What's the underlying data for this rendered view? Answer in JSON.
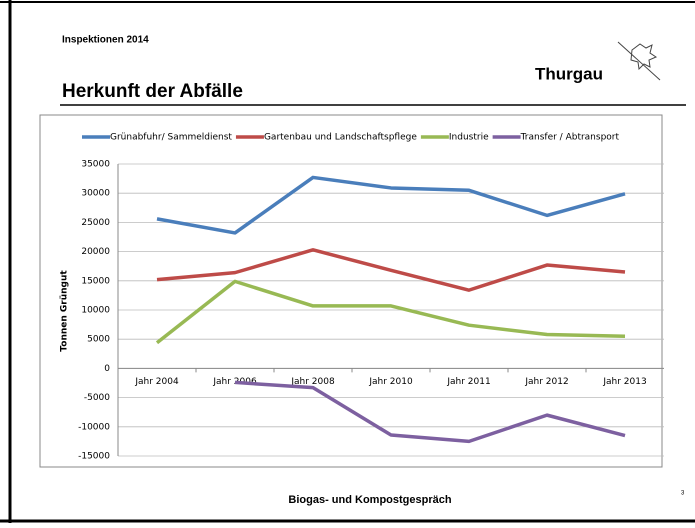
{
  "header": "Inspektionen 2014",
  "logo": "Thurgau",
  "title": "Herkunft der Abfälle",
  "footer": "Biogas- und Kompostgespräch",
  "page_number": "3",
  "chart_data": {
    "type": "line",
    "y_label": "Tonnen Grüngut",
    "categories": [
      "Jahr 2004",
      "Jahr 2006",
      "Jahr 2008",
      "Jahr 2010",
      "Jahr 2011",
      "Jahr 2012",
      "Jahr 2013"
    ],
    "series": [
      {
        "name": "Grünabfuhr/ Sammeldienst",
        "color": "#4a7ebb",
        "values": [
          25600,
          23200,
          32700,
          30900,
          30500,
          26200,
          29900
        ]
      },
      {
        "name": "Gartenbau und Landschaftspflege",
        "color": "#be4b48",
        "values": [
          15200,
          16400,
          20300,
          16800,
          13400,
          17700,
          16500
        ]
      },
      {
        "name": "Industrie",
        "color": "#98b954",
        "values": [
          4400,
          14900,
          10700,
          10700,
          7400,
          5800,
          5500
        ]
      },
      {
        "name": "Transfer / Abtransport",
        "color": "#7d60a0",
        "values": [
          null,
          -2400,
          -3300,
          -11400,
          -12500,
          -8000,
          -11500
        ]
      }
    ],
    "ylim": [
      -15000,
      35000
    ],
    "yticks": [
      -15000,
      -10000,
      -5000,
      0,
      5000,
      10000,
      15000,
      20000,
      25000,
      30000,
      35000
    ],
    "grid": true,
    "legend": "top"
  }
}
